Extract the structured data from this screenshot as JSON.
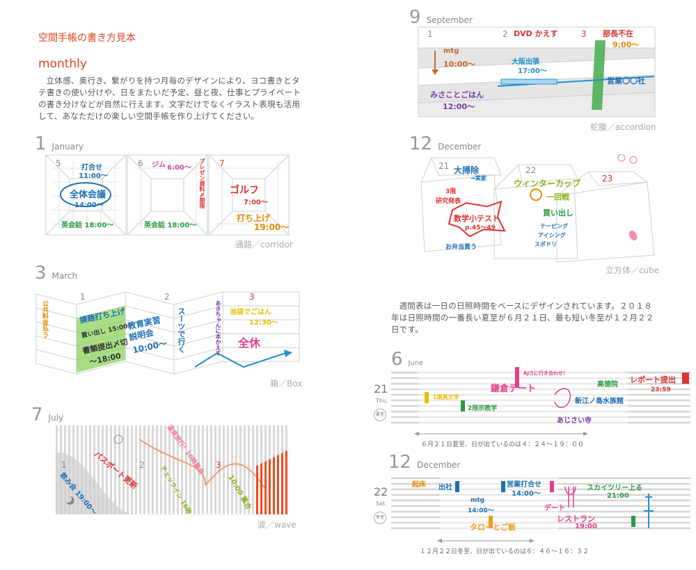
{
  "header": {
    "title": "空間手帳の書き方見本",
    "subtitle": "monthly",
    "intro": "立体感、奥行き、繋がりを持つ月毎のデザインにより、ヨコ書きとタテ書きの使い分けや、日をまたいだ予定、昼と夜、仕事とプライベートの書き分けなどが自然に行えます。文字だけでなくイラスト表現も活用して、あなただけの楽しい空間手帳を作り上げてください。"
  },
  "january": {
    "num": "1",
    "name": "January",
    "caption": "通路／corridor",
    "days": [
      "5",
      "6",
      "7"
    ],
    "notes": [
      "打合せ",
      "11:00〜",
      "全体会議",
      "14:00〜",
      "英会話 18:00〜",
      "ジム",
      "6:00〜",
      "英会話 18:00〜",
      "プレゼン資料〆期限",
      "ゴルフ",
      "7:00〜",
      "打ち上げ",
      "19:00〜"
    ]
  },
  "march": {
    "num": "3",
    "name": "March",
    "caption": "箱／Box",
    "days": [
      "1",
      "2",
      "3"
    ],
    "notes": [
      "公共料金払う",
      "課題打ち上げ",
      "買い出し 15:00〜",
      "書類提出〆切",
      "〜18:00",
      "教育実習",
      "説明会",
      "10:00〜",
      "スーツで行く",
      "あきちゃんに本かえす",
      "池袋でごはん",
      "12:30〜",
      "全休"
    ]
  },
  "july": {
    "num": "7",
    "name": "July",
    "caption": "波／wave",
    "days": [
      "1",
      "2",
      "3"
    ],
    "notes": [
      "パスポート更新",
      "飲み会 19:00〜",
      "温泉旅行！10時集合",
      "チェックイン 16時",
      "10:00 集合"
    ]
  },
  "september": {
    "num": "9",
    "name": "September",
    "caption": "蛇腹／accordion",
    "days": [
      "1",
      "2",
      "3"
    ],
    "notes": [
      "DVD かえす",
      "部長不在",
      "9:00〜",
      "mtg",
      "10:00〜",
      "大阪出張",
      "17:00〜",
      "営業〇〇社",
      "みさことごはん",
      "12:00〜"
    ]
  },
  "december_cube": {
    "num": "12",
    "name": "December",
    "caption": "立方体／cube",
    "days": [
      "21",
      "22",
      "23"
    ],
    "notes": [
      "大掃除",
      "→実家",
      "3限",
      "研究発表",
      "数学小テスト",
      "p.45〜49",
      "お弁当買う",
      "ウィンターカップ",
      "一回戦",
      "買い出し",
      "テーピング",
      "アイシング",
      "スポドリ"
    ]
  },
  "weekly_intro": "週間表は一日の日照時間をベースにデザインされています。２０１８年は日照時間の一番長い夏至が６月２１日、最も短い冬至が１２月２２日です。",
  "june_week": {
    "num": "6",
    "name": "June",
    "day": "21",
    "dow": "Thu.",
    "badge": "夏至",
    "sun_note": "６月２１日夏至、日が出ているのは４：２４〜１９：００",
    "notes": [
      "1限英文学",
      "2限宗教学",
      "鎌倉デート",
      "AJさに行き合わせ！",
      "あじさい寺",
      "高徳院",
      "新江ノ島水族館",
      "レポート提出",
      "23:59"
    ]
  },
  "december_week": {
    "num": "12",
    "name": "December",
    "day": "22",
    "dow": "Sat.",
    "badge": "冬至",
    "sun_note": "１２月２２日冬至、日が出ているのは６：４６〜１６：３２",
    "notes": [
      "起床",
      "出社",
      "mtg",
      "14:00〜",
      "営業打合せ",
      "14:00〜",
      "タローとご飯",
      "デート",
      "レストラン",
      "19:00",
      "スカイツリー上る",
      "21:00"
    ]
  }
}
